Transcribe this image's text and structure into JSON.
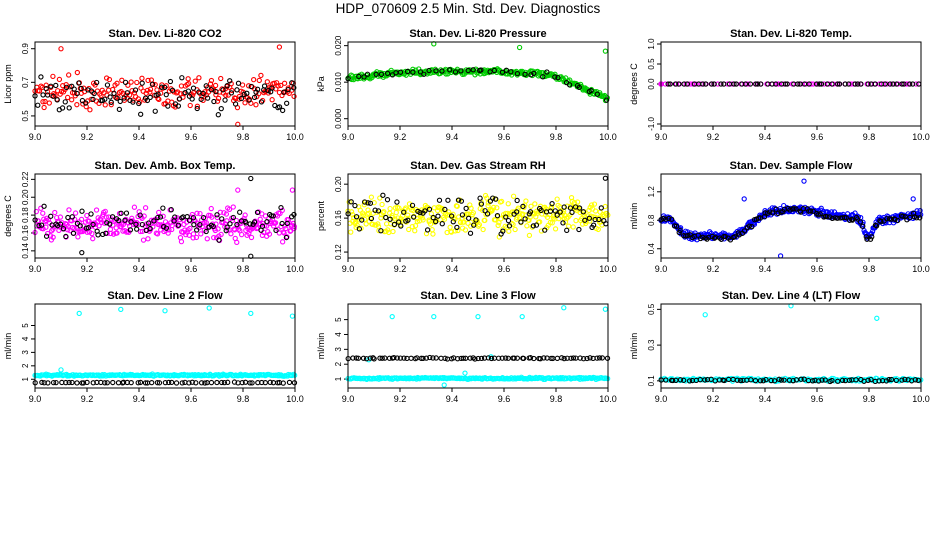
{
  "page": {
    "title": "HDP_070609  2.5 Min. Std. Dev. Diagnostics"
  },
  "chart_data": [
    {
      "type": "scatter",
      "title": "Stan. Dev. Li-820 CO2",
      "xlabel": "",
      "ylabel": "Licor ppm",
      "xlim": [
        9.0,
        10.0
      ],
      "ylim": [
        0.44,
        0.94
      ],
      "xticks": [
        "9.0",
        "9.2",
        "9.4",
        "9.6",
        "9.8",
        "10.0"
      ],
      "yticks": [
        "0.5",
        "0.7",
        "0.9"
      ],
      "series": [
        {
          "name": "primary",
          "color": "#ff0000",
          "n": 210,
          "base": 0.64,
          "spread": 0.14,
          "shape": "flat",
          "outliers": [
            [
              9.1,
              0.9
            ],
            [
              9.94,
              0.91
            ],
            [
              9.78,
              0.45
            ]
          ]
        },
        {
          "name": "secondary",
          "color": "#000000",
          "n": 110,
          "base": 0.63,
          "spread": 0.14,
          "shape": "flat",
          "outliers": []
        }
      ]
    },
    {
      "type": "scatter",
      "title": "Stan. Dev. Li-820 Pressure",
      "xlabel": "",
      "ylabel": "kPa",
      "xlim": [
        9.0,
        10.0
      ],
      "ylim": [
        -0.002,
        0.021
      ],
      "xticks": [
        "9.0",
        "9.2",
        "9.4",
        "9.6",
        "9.8",
        "10.0"
      ],
      "yticks": [
        "0.000",
        "0.010",
        "0.020"
      ],
      "series": [
        {
          "name": "primary",
          "color": "#00cc00",
          "n": 300,
          "base": 0.0095,
          "spread": 0.0012,
          "shape": "hump",
          "outliers": [
            [
              9.33,
              0.0205
            ],
            [
              9.66,
              0.0195
            ],
            [
              9.99,
              0.0185
            ]
          ]
        },
        {
          "name": "secondary",
          "color": "#000000",
          "n": 45,
          "base": 0.0095,
          "spread": 0.001,
          "shape": "hump",
          "outliers": []
        }
      ]
    },
    {
      "type": "scatter",
      "title": "Stan. Dev. Li-820 Temp.",
      "xlabel": "",
      "ylabel": "degrees C",
      "xlim": [
        9.0,
        10.0
      ],
      "ylim": [
        -1.05,
        1.05
      ],
      "xticks": [
        "9.0",
        "9.2",
        "9.4",
        "9.6",
        "9.8",
        "10.0"
      ],
      "yticks": [
        "-1.0",
        "0.0",
        "0.5",
        "1.0"
      ],
      "series": [
        {
          "name": "primary",
          "color": "#ff00ff",
          "n": 60,
          "base": 0.0,
          "spread": 0.0,
          "shape": "flat",
          "outliers": []
        },
        {
          "name": "secondary",
          "color": "#000000",
          "n": 60,
          "base": 0.0,
          "spread": 0.0,
          "shape": "flat",
          "outliers": []
        }
      ]
    },
    {
      "type": "scatter",
      "title": "Stan. Dev. Amb. Box Temp.",
      "xlabel": "",
      "ylabel": "degrees C",
      "xlim": [
        9.0,
        10.0
      ],
      "ylim": [
        0.132,
        0.226
      ],
      "xticks": [
        "9.0",
        "9.2",
        "9.4",
        "9.6",
        "9.8",
        "10.0"
      ],
      "yticks": [
        "0.14",
        "0.16",
        "0.18",
        "0.20",
        "0.22"
      ],
      "series": [
        {
          "name": "primary",
          "color": "#ff00ff",
          "n": 330,
          "base": 0.169,
          "spread": 0.024,
          "shape": "flat",
          "outliers": [
            [
              9.99,
              0.208
            ],
            [
              9.78,
              0.208
            ]
          ]
        },
        {
          "name": "secondary",
          "color": "#000000",
          "n": 95,
          "base": 0.17,
          "spread": 0.026,
          "shape": "flat",
          "outliers": [
            [
              9.83,
              0.221
            ],
            [
              9.83,
              0.134
            ],
            [
              9.18,
              0.138
            ]
          ]
        }
      ]
    },
    {
      "type": "scatter",
      "title": "Stan. Dev. Gas Stream RH",
      "xlabel": "",
      "ylabel": "percent",
      "xlim": [
        9.0,
        10.0
      ],
      "ylim": [
        0.113,
        0.212
      ],
      "xticks": [
        "9.0",
        "9.2",
        "9.4",
        "9.6",
        "9.8",
        "10.0"
      ],
      "yticks": [
        "0.12",
        "0.16",
        "0.20"
      ],
      "series": [
        {
          "name": "primary",
          "color": "#ffff00",
          "n": 330,
          "base": 0.163,
          "spread": 0.03,
          "shape": "flat",
          "outliers": []
        },
        {
          "name": "secondary",
          "color": "#000000",
          "n": 100,
          "base": 0.164,
          "spread": 0.03,
          "shape": "flat",
          "outliers": [
            [
              9.99,
              0.207
            ]
          ]
        }
      ]
    },
    {
      "type": "scatter",
      "title": "Stan. Dev. Sample Flow",
      "xlabel": "",
      "ylabel": "ml/min",
      "xlim": [
        9.0,
        10.0
      ],
      "ylim": [
        0.27,
        1.45
      ],
      "xticks": [
        "9.0",
        "9.2",
        "9.4",
        "9.6",
        "9.8",
        "10.0"
      ],
      "yticks": [
        "0.4",
        "0.8",
        "1.2"
      ],
      "series": [
        {
          "name": "primary",
          "color": "#0000ff",
          "n": 340,
          "base": 0.8,
          "spread": 0.08,
          "shape": "flow",
          "outliers": [
            [
              9.55,
              1.35
            ],
            [
              9.46,
              0.3
            ],
            [
              9.97,
              1.1
            ],
            [
              9.32,
              1.1
            ]
          ]
        },
        {
          "name": "secondary",
          "color": "#000000",
          "n": 110,
          "base": 0.78,
          "spread": 0.06,
          "shape": "flow",
          "outliers": []
        }
      ]
    },
    {
      "type": "scatter",
      "title": "Stan. Dev. Line 2 Flow",
      "xlabel": "",
      "ylabel": "ml/min",
      "xlim": [
        9.0,
        10.0
      ],
      "ylim": [
        0.35,
        6.6
      ],
      "xticks": [
        "9.0",
        "9.2",
        "9.4",
        "9.6",
        "9.8",
        "10.0"
      ],
      "yticks": [
        "1",
        "2",
        "3",
        "4",
        "5"
      ],
      "series": [
        {
          "name": "primary",
          "color": "#00ffff",
          "n": 230,
          "base": 1.3,
          "spread": 0.1,
          "shape": "flat",
          "outliers": [
            [
              9.17,
              5.9
            ],
            [
              9.33,
              6.2
            ],
            [
              9.5,
              6.1
            ],
            [
              9.67,
              6.3
            ],
            [
              9.83,
              5.9
            ],
            [
              9.99,
              5.7
            ],
            [
              9.1,
              1.7
            ]
          ]
        },
        {
          "name": "secondary",
          "color": "#000000",
          "n": 65,
          "base": 0.75,
          "spread": 0.05,
          "shape": "flat",
          "outliers": []
        }
      ]
    },
    {
      "type": "scatter",
      "title": "Stan. Dev. Line 3 Flow",
      "xlabel": "",
      "ylabel": "ml/min",
      "xlim": [
        9.0,
        10.0
      ],
      "ylim": [
        0.4,
        6.05
      ],
      "xticks": [
        "9.0",
        "9.2",
        "9.4",
        "9.6",
        "9.8",
        "10.0"
      ],
      "yticks": [
        "1",
        "2",
        "3",
        "4",
        "5"
      ],
      "series": [
        {
          "name": "primary",
          "color": "#00ffff",
          "n": 230,
          "base": 1.05,
          "spread": 0.09,
          "shape": "flat",
          "outliers": [
            [
              9.17,
              5.2
            ],
            [
              9.33,
              5.2
            ],
            [
              9.5,
              5.2
            ],
            [
              9.67,
              5.2
            ],
            [
              9.83,
              5.8
            ],
            [
              9.99,
              5.7
            ],
            [
              9.37,
              0.6
            ],
            [
              9.45,
              1.4
            ],
            [
              9.08,
              2.3
            ],
            [
              9.55,
              2.5
            ]
          ]
        },
        {
          "name": "secondary",
          "color": "#000000",
          "n": 80,
          "base": 2.4,
          "spread": 0.06,
          "shape": "flat",
          "outliers": []
        }
      ]
    },
    {
      "type": "scatter",
      "title": "Stan. Dev. Line 4 (LT) Flow",
      "xlabel": "",
      "ylabel": "ml/min",
      "xlim": [
        9.0,
        10.0
      ],
      "ylim": [
        0.06,
        0.53
      ],
      "xticks": [
        "9.0",
        "9.2",
        "9.4",
        "9.6",
        "9.8",
        "10.0"
      ],
      "yticks": [
        "0.1",
        "0.3",
        "0.5"
      ],
      "series": [
        {
          "name": "primary",
          "color": "#00ffff",
          "n": 200,
          "base": 0.106,
          "spread": 0.012,
          "shape": "flat",
          "outliers": [
            [
              9.17,
              0.47
            ],
            [
              9.5,
              0.52
            ],
            [
              9.83,
              0.45
            ]
          ]
        },
        {
          "name": "secondary",
          "color": "#000000",
          "n": 70,
          "base": 0.103,
          "spread": 0.01,
          "shape": "flat",
          "outliers": []
        }
      ]
    }
  ]
}
